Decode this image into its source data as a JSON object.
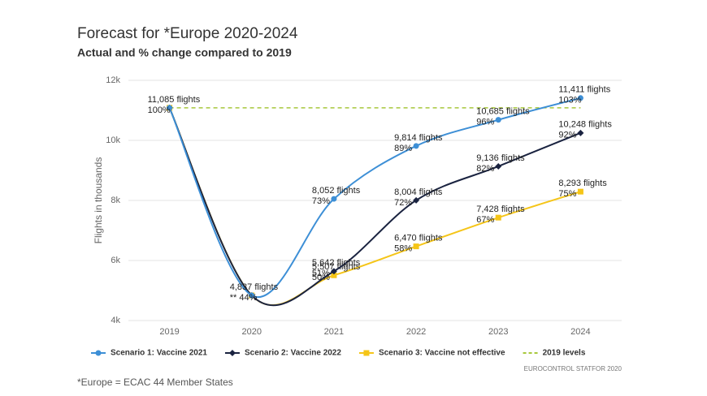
{
  "chart_data": {
    "type": "line",
    "title": "Forecast for *Europe 2020-2024",
    "subtitle": "Actual and % change compared to 2019",
    "y_label": "Flights in thousands",
    "categories": [
      "2019",
      "2020",
      "2021",
      "2022",
      "2023",
      "2024"
    ],
    "ylim": [
      4000,
      12000
    ],
    "yticks": [
      {
        "value": 4000,
        "label": "4k"
      },
      {
        "value": 6000,
        "label": "6k"
      },
      {
        "value": 8000,
        "label": "8k"
      },
      {
        "value": 10000,
        "label": "10k"
      },
      {
        "value": 12000,
        "label": "12k"
      }
    ],
    "grid": true,
    "legend": "bottom",
    "series": [
      {
        "name": "Scenario 1: Vaccine 2021",
        "color": "#3d8fd6",
        "marker": "circle",
        "values": [
          11085,
          4837,
          8052,
          9814,
          10685,
          11411
        ],
        "value_labels": [
          "11,085 flights",
          "4,837 flights",
          "8,052 flights",
          "9,814 flights",
          "10,685 flights",
          "11,411 flights"
        ],
        "percent_labels": [
          "100%",
          "** 44%",
          "73%",
          "89%",
          "96%",
          "103%"
        ]
      },
      {
        "name": "Scenario 2: Vaccine 2022",
        "color": "#1a2340",
        "marker": "diamond",
        "values": [
          11085,
          4837,
          5642,
          8004,
          9136,
          10248
        ],
        "value_labels": [
          null,
          null,
          "5,642 flights",
          "8,004 flights",
          "9,136 flights",
          "10,248 flights"
        ],
        "percent_labels": [
          null,
          null,
          "51%",
          "72%",
          "82%",
          "92%"
        ]
      },
      {
        "name": "Scenario 3: Vaccine not effective",
        "color": "#f5c518",
        "marker": "square",
        "values": [
          11085,
          4837,
          5507,
          6470,
          7428,
          8293
        ],
        "value_labels": [
          null,
          null,
          "5,507 flights",
          "6,470 flights",
          "7,428 flights",
          "8,293 flights"
        ],
        "percent_labels": [
          null,
          null,
          "50%",
          "58%",
          "67%",
          "75%"
        ]
      },
      {
        "name": "2019 levels",
        "color": "#a8c83c",
        "dashed": true,
        "values": [
          11085,
          11085,
          11085,
          11085,
          11085,
          11085
        ]
      }
    ],
    "source": "EUROCONTROL STATFOR 2020",
    "footnote": "*Europe = ECAC 44 Member States"
  }
}
